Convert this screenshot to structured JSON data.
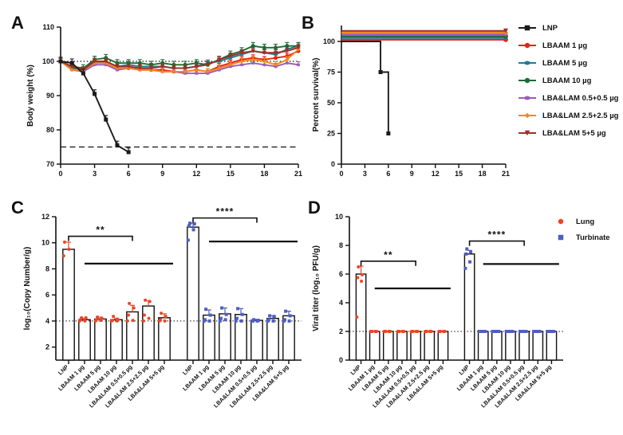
{
  "figure": {
    "background": "#ffffff"
  },
  "panels": {
    "a": "A",
    "b": "B",
    "c": "C",
    "d": "D"
  },
  "chart_data": [
    {
      "id": "A",
      "type": "line",
      "title": "",
      "xlabel": "",
      "ylabel": "Body weight (%)",
      "ylim": [
        70,
        110
      ],
      "yticks": [
        70,
        80,
        90,
        100,
        110
      ],
      "xlim": [
        0,
        21
      ],
      "xticks": [
        0,
        3,
        6,
        9,
        12,
        15,
        18,
        21
      ],
      "grid": false,
      "reference_lines": [
        {
          "y": 100,
          "style": "dotted"
        },
        {
          "y": 75,
          "style": "dashed"
        }
      ],
      "x": [
        0,
        1,
        2,
        3,
        4,
        5,
        6,
        7,
        8,
        9,
        10,
        11,
        12,
        13,
        14,
        15,
        16,
        17,
        18,
        19,
        20,
        21
      ],
      "series": [
        {
          "name": "LNP",
          "color": "#1b1b1b",
          "marker": "square",
          "err": 1.2,
          "x": [
            0,
            1,
            2,
            3,
            4,
            5,
            6
          ],
          "values": [
            100,
            99.5,
            96.5,
            90.5,
            83,
            75.5,
            73.5
          ]
        },
        {
          "name": "LBAAM 1 µg",
          "color": "#e2231a",
          "marker": "circle",
          "err": 0.9,
          "values": [
            100,
            98,
            97.5,
            100,
            99.5,
            98,
            98,
            98,
            97.5,
            97.5,
            97,
            97,
            97.5,
            97,
            98.5,
            99.5,
            100.5,
            101,
            100.5,
            101,
            101.5,
            103
          ]
        },
        {
          "name": "LBAAM 5 µg",
          "color": "#1b7e94",
          "marker": "star",
          "err": 0.9,
          "values": [
            100,
            98,
            97.5,
            99.5,
            100,
            98.5,
            99,
            98.5,
            98.5,
            98.5,
            98,
            98,
            98.5,
            99.5,
            100,
            101,
            102,
            103,
            102.5,
            102,
            103.5,
            104.5
          ]
        },
        {
          "name": "LBAAM 10 µg",
          "color": "#1c6b35",
          "marker": "circle",
          "err": 1.0,
          "values": [
            100,
            98.5,
            98,
            100.5,
            101,
            99.5,
            99.5,
            99.5,
            99,
            99.5,
            99,
            99,
            99.5,
            99,
            100.5,
            102,
            103,
            104.5,
            104,
            104,
            104.5,
            104.5
          ]
        },
        {
          "name": "LBA&LAM 0.5+0.5 µg",
          "color": "#9d5bb5",
          "marker": "star",
          "err": 0.9,
          "values": [
            100,
            97.5,
            97,
            99,
            99,
            97.5,
            98,
            97.5,
            97.5,
            97,
            97,
            96.5,
            96.5,
            96.5,
            97.5,
            98.5,
            99,
            99.5,
            99,
            98.5,
            99.5,
            99
          ]
        },
        {
          "name": "LBA&LAM 2.5+2.5 µg",
          "color": "#f5871f",
          "marker": "diamond",
          "err": 0.9,
          "values": [
            100,
            97.5,
            97.5,
            99.5,
            99.5,
            98,
            98,
            97.5,
            97.5,
            97,
            97,
            97,
            97.5,
            97,
            98,
            99,
            100,
            100.5,
            100,
            99,
            100.5,
            103.5
          ]
        },
        {
          "name": "LBA&LAM 5+5 µg",
          "color": "#9e2f28",
          "marker": "triangle-down",
          "err": 0.9,
          "values": [
            100,
            98.5,
            97.5,
            100,
            100,
            98.5,
            98.5,
            98,
            98,
            98.5,
            98,
            98,
            98.5,
            99,
            100.5,
            101.5,
            102.5,
            103,
            102.5,
            102.5,
            103,
            104
          ]
        }
      ]
    },
    {
      "id": "B",
      "type": "step",
      "title": "",
      "xlabel": "",
      "ylabel": "Percent survival(%)",
      "ylim": [
        0,
        100
      ],
      "yticks": [
        0,
        25,
        50,
        75,
        100
      ],
      "xlim": [
        0,
        21
      ],
      "xticks": [
        0,
        3,
        6,
        9,
        12,
        15,
        18,
        21
      ],
      "grid": false,
      "legend_position": "right",
      "series": [
        {
          "name": "LNP",
          "color": "#1b1b1b",
          "marker": "square",
          "steps": [
            [
              0,
              100
            ],
            [
              5,
              100
            ],
            [
              5,
              75
            ],
            [
              6,
              75
            ],
            [
              6,
              25
            ]
          ]
        },
        {
          "name": "LBAAM 1 µg",
          "color": "#e2231a",
          "marker": "circle",
          "survival": 100
        },
        {
          "name": "LBAAM 5 µg",
          "color": "#1b7e94",
          "marker": "star",
          "survival": 100
        },
        {
          "name": "LBAAM 10 µg",
          "color": "#1c6b35",
          "marker": "circle",
          "survival": 100
        },
        {
          "name": "LBA&LAM 0.5+0.5 µg",
          "color": "#9d5bb5",
          "marker": "star",
          "survival": 100
        },
        {
          "name": "LBA&LAM 2.5+2.5 µg",
          "color": "#f5871f",
          "marker": "diamond",
          "survival": 100
        },
        {
          "name": "LBA&LAM 5+5 µg",
          "color": "#9e2f28",
          "marker": "triangle-down",
          "survival": 100
        }
      ]
    },
    {
      "id": "C",
      "type": "bar",
      "title": "",
      "xlabel": "",
      "ylabel": "log₁₀(Copy Number/g)",
      "ylim": [
        1,
        12
      ],
      "yticks": [
        2,
        4,
        6,
        8,
        10,
        12
      ],
      "grid": false,
      "lod": 4,
      "categories": [
        "LNP",
        "LBAAM 1 µg",
        "LBAAM 5 µg",
        "LBAAM 10 µg",
        "LBA&LAM 0.5+0.5 µg",
        "LBA&LAM 2.5+2.5 µg",
        "LBA&LAM 5+5 µg"
      ],
      "groups": [
        {
          "name": "Lung",
          "color": "#ee4424",
          "marker": "circle",
          "bars": [
            9.5,
            4.1,
            4.15,
            4.1,
            4.7,
            5.15,
            4.25
          ],
          "errs": [
            0.55,
            0.12,
            0.15,
            0.12,
            0.5,
            0.4,
            0.3
          ],
          "points": [
            [
              9.0,
              9.5,
              10.05
            ],
            [
              4.0,
              4.0,
              4.1,
              4.25,
              4.25
            ],
            [
              4.0,
              4.05,
              4.1,
              4.2,
              4.3
            ],
            [
              4.0,
              4.0,
              4.05,
              4.1,
              4.35
            ],
            [
              4.0,
              4.05,
              4.45,
              5.0,
              5.35
            ],
            [
              4.0,
              4.2,
              4.45,
              5.5,
              5.6
            ],
            [
              4.0,
              4.0,
              4.1,
              4.35,
              4.6
            ]
          ]
        },
        {
          "name": "Turbinate",
          "color": "#4f5fc2",
          "marker": "square",
          "bars": [
            11.2,
            4.45,
            4.55,
            4.5,
            4.05,
            4.2,
            4.4
          ],
          "errs": [
            0.3,
            0.4,
            0.45,
            0.45,
            0.08,
            0.2,
            0.35
          ],
          "points": [
            [
              10.2,
              11.0,
              11.3,
              11.45,
              11.5
            ],
            [
              4.0,
              4.0,
              4.1,
              4.45,
              4.9
            ],
            [
              4.0,
              4.1,
              4.2,
              4.5,
              5.0
            ],
            [
              4.0,
              4.0,
              4.2,
              4.5,
              4.95
            ],
            [
              4.0,
              4.0,
              4.0,
              4.05,
              4.1
            ],
            [
              4.0,
              4.0,
              4.1,
              4.35,
              4.4
            ],
            [
              4.0,
              4.0,
              4.1,
              4.4,
              4.75
            ]
          ]
        }
      ],
      "annotations": [
        {
          "type": "bracket",
          "group": 0,
          "from": 0,
          "to": 4,
          "y": 10.5,
          "label": "**"
        },
        {
          "type": "line",
          "group": 0,
          "from": 1,
          "to": 6,
          "y": 8.4
        },
        {
          "type": "bracket",
          "group": 1,
          "from": 0,
          "to": 4,
          "y": 11.9,
          "label": "****"
        },
        {
          "type": "line",
          "group": 1,
          "from": 1,
          "to": 6,
          "y": 10.1
        }
      ]
    },
    {
      "id": "D",
      "type": "bar",
      "title": "",
      "xlabel": "",
      "ylabel": "Viral titer (log₁₀ PFU/g)",
      "ylim": [
        0,
        10
      ],
      "yticks": [
        0,
        2,
        4,
        6,
        8,
        10
      ],
      "grid": false,
      "lod": 2,
      "legend_position": "top-right",
      "categories": [
        "LNP",
        "LBAAM 1 µg",
        "LBAAM 5 µg",
        "LBAAM 10 µg",
        "LBA&LAM 0.5+0.5 µg",
        "LBA&LAM 2.5+2.5 µg",
        "LBA&LAM 5+5 µg"
      ],
      "groups": [
        {
          "name": "Lung",
          "color": "#ee4424",
          "marker": "circle",
          "bars": [
            6.0,
            2,
            2,
            2,
            2,
            2,
            2
          ],
          "errs": [
            0.55,
            0,
            0,
            0,
            0,
            0,
            0
          ],
          "points": [
            [
              3.0,
              5.5,
              5.75,
              5.95,
              6.5
            ],
            [
              2,
              2,
              2,
              2,
              2,
              2
            ],
            [
              2,
              2,
              2,
              2,
              2,
              2
            ],
            [
              2,
              2,
              2,
              2,
              2,
              2
            ],
            [
              2,
              2,
              2,
              2,
              2,
              2
            ],
            [
              2,
              2,
              2,
              2,
              2,
              2
            ],
            [
              2,
              2,
              2,
              2,
              2,
              2
            ]
          ]
        },
        {
          "name": "Turbinate",
          "color": "#4f5fc2",
          "marker": "square",
          "bars": [
            7.4,
            2,
            2,
            2,
            2,
            2,
            2
          ],
          "errs": [
            0.25,
            0,
            0,
            0,
            0,
            0,
            0
          ],
          "points": [
            [
              6.4,
              6.85,
              7.4,
              7.55,
              7.75
            ],
            [
              2,
              2,
              2,
              2,
              2,
              2
            ],
            [
              2,
              2,
              2,
              2,
              2,
              2
            ],
            [
              2,
              2,
              2,
              2,
              2,
              2
            ],
            [
              2,
              2,
              2,
              2,
              2,
              2
            ],
            [
              2,
              2,
              2,
              2,
              2,
              2
            ],
            [
              2,
              2,
              2,
              2,
              2,
              2
            ]
          ]
        }
      ],
      "annotations": [
        {
          "type": "bracket",
          "group": 0,
          "from": 0,
          "to": 4,
          "y": 6.9,
          "label": "**"
        },
        {
          "type": "line",
          "group": 0,
          "from": 1,
          "to": 6,
          "y": 5.0
        },
        {
          "type": "bracket",
          "group": 1,
          "from": 0,
          "to": 4,
          "y": 8.3,
          "label": "****"
        },
        {
          "type": "line",
          "group": 1,
          "from": 1,
          "to": 6,
          "y": 6.7
        }
      ]
    }
  ]
}
